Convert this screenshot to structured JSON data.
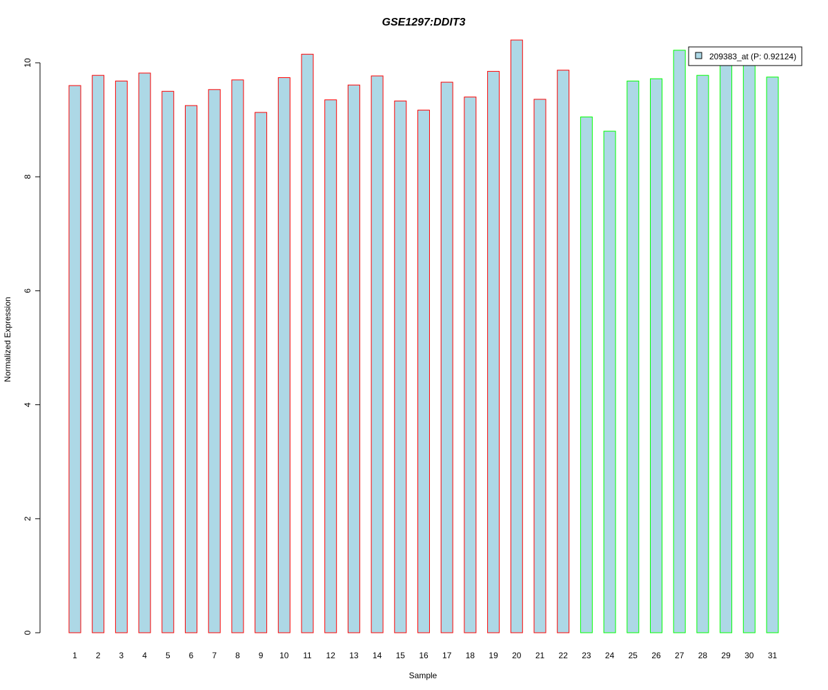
{
  "chart_data": {
    "type": "bar",
    "title": "GSE1297:DDIT3",
    "xlabel": "Sample",
    "ylabel": "Normalized Expression",
    "ylim": [
      0,
      10.5
    ],
    "yticks": [
      0,
      2,
      4,
      6,
      8,
      10
    ],
    "categories": [
      "1",
      "2",
      "3",
      "4",
      "5",
      "6",
      "7",
      "8",
      "9",
      "10",
      "11",
      "12",
      "13",
      "14",
      "15",
      "16",
      "17",
      "18",
      "19",
      "20",
      "21",
      "22",
      "23",
      "24",
      "25",
      "26",
      "27",
      "28",
      "29",
      "30",
      "31"
    ],
    "values": [
      9.6,
      9.78,
      9.68,
      9.82,
      9.5,
      9.25,
      9.53,
      9.7,
      9.13,
      9.74,
      10.15,
      9.35,
      9.61,
      9.77,
      9.33,
      9.17,
      9.66,
      9.4,
      9.85,
      10.4,
      9.36,
      9.87,
      9.05,
      8.8,
      9.68,
      9.72,
      10.22,
      9.78,
      10.0,
      10.0,
      9.75
    ],
    "groups": [
      "red",
      "red",
      "red",
      "red",
      "red",
      "red",
      "red",
      "red",
      "red",
      "red",
      "red",
      "red",
      "red",
      "red",
      "red",
      "red",
      "red",
      "red",
      "red",
      "red",
      "red",
      "red",
      "green",
      "green",
      "green",
      "green",
      "green",
      "green",
      "green",
      "green",
      "green"
    ],
    "legend": {
      "label": "209383_at (P: 0.92124)",
      "position": "top-right"
    },
    "colors": {
      "bar_fill": "#add8e6",
      "border_red": "#ff0000",
      "border_green": "#00ff00",
      "title": "#0000cc"
    },
    "grid": false
  }
}
